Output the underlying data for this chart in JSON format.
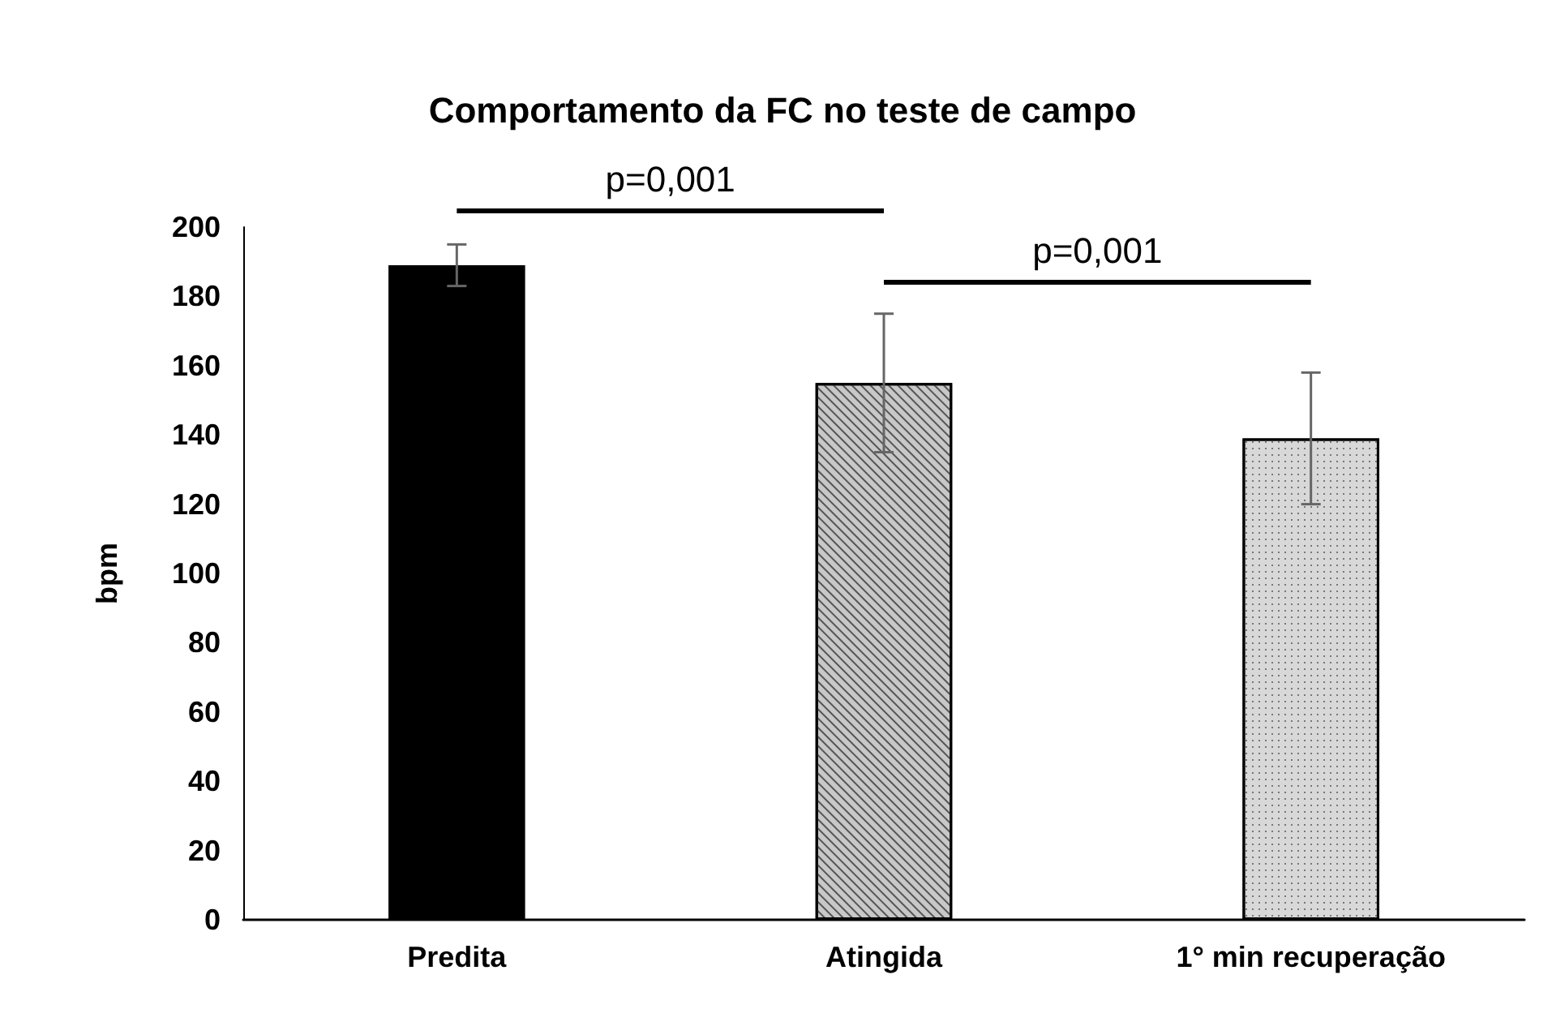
{
  "chart_data": {
    "type": "bar",
    "title": "Comportamento da FC no teste de campo",
    "ylabel": "bpm",
    "categories": [
      "Predita",
      "Atingida",
      "1° min recuperação"
    ],
    "values": [
      189,
      155,
      139
    ],
    "errors": [
      6,
      20,
      19
    ],
    "colors": [
      "#000000",
      "#c8c8c8",
      "#d8d8d8"
    ],
    "ylim": [
      0,
      200
    ],
    "yticks": [
      0,
      20,
      40,
      60,
      80,
      100,
      120,
      140,
      160,
      180,
      200
    ],
    "grid": false,
    "annotations": [
      "p=0,001",
      "p=0,001"
    ]
  }
}
